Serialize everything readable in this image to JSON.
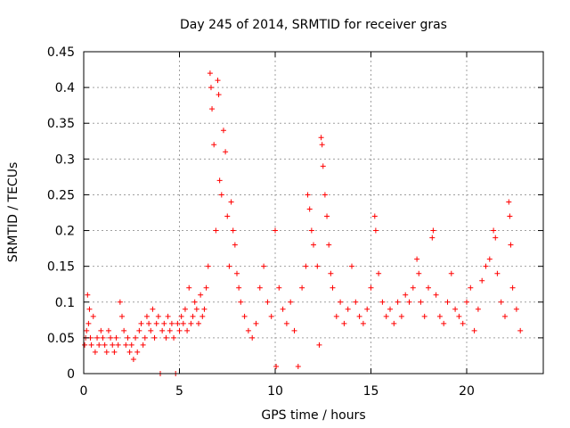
{
  "chart_data": {
    "type": "scatter",
    "title": "Day 245 of 2014, SRMTID for receiver gras",
    "xlabel": "GPS time / hours",
    "ylabel": "SRMTID / TECUs",
    "xlim": [
      0,
      24
    ],
    "ylim": [
      0,
      0.45
    ],
    "grid": true,
    "marker": "+",
    "color": "#ff0000",
    "x_ticks": [
      0,
      5,
      10,
      15,
      20
    ],
    "x_tick_labels": [
      "0",
      "5",
      "10",
      "15",
      "20"
    ],
    "y_ticks": [
      0,
      0.05,
      0.1,
      0.15,
      0.2,
      0.25,
      0.3,
      0.35,
      0.4,
      0.45
    ],
    "y_tick_labels": [
      "0",
      "0.05",
      "0.1",
      "0.15",
      "0.2",
      "0.25",
      "0.3",
      "0.35",
      "0.4",
      "0.45"
    ],
    "series": [
      {
        "name": "SRMTID",
        "points": [
          [
            0.05,
            0.04
          ],
          [
            0.1,
            0.05
          ],
          [
            0.15,
            0.06
          ],
          [
            0.2,
            0.11
          ],
          [
            0.25,
            0.07
          ],
          [
            0.3,
            0.09
          ],
          [
            0.35,
            0.05
          ],
          [
            0.4,
            0.04
          ],
          [
            0.5,
            0.08
          ],
          [
            0.6,
            0.03
          ],
          [
            0.7,
            0.05
          ],
          [
            0.8,
            0.04
          ],
          [
            0.9,
            0.06
          ],
          [
            1.0,
            0.05
          ],
          [
            1.1,
            0.04
          ],
          [
            1.2,
            0.03
          ],
          [
            1.3,
            0.06
          ],
          [
            1.4,
            0.05
          ],
          [
            1.5,
            0.04
          ],
          [
            1.6,
            0.03
          ],
          [
            1.7,
            0.05
          ],
          [
            1.8,
            0.04
          ],
          [
            1.9,
            0.1
          ],
          [
            2.0,
            0.08
          ],
          [
            2.1,
            0.06
          ],
          [
            2.2,
            0.04
          ],
          [
            2.3,
            0.05
          ],
          [
            2.4,
            0.03
          ],
          [
            2.5,
            0.04
          ],
          [
            2.6,
            0.02
          ],
          [
            2.7,
            0.05
          ],
          [
            2.8,
            0.03
          ],
          [
            2.9,
            0.06
          ],
          [
            3.0,
            0.07
          ],
          [
            3.1,
            0.04
          ],
          [
            3.2,
            0.05
          ],
          [
            3.3,
            0.08
          ],
          [
            3.4,
            0.07
          ],
          [
            3.5,
            0.06
          ],
          [
            3.6,
            0.09
          ],
          [
            3.7,
            0.05
          ],
          [
            3.8,
            0.07
          ],
          [
            3.9,
            0.08
          ],
          [
            4.0,
            0.0
          ],
          [
            4.1,
            0.06
          ],
          [
            4.2,
            0.07
          ],
          [
            4.3,
            0.05
          ],
          [
            4.4,
            0.08
          ],
          [
            4.5,
            0.06
          ],
          [
            4.6,
            0.07
          ],
          [
            4.7,
            0.05
          ],
          [
            4.8,
            0.0
          ],
          [
            4.9,
            0.07
          ],
          [
            5.0,
            0.06
          ],
          [
            5.1,
            0.08
          ],
          [
            5.2,
            0.07
          ],
          [
            5.3,
            0.09
          ],
          [
            5.4,
            0.06
          ],
          [
            5.5,
            0.12
          ],
          [
            5.6,
            0.07
          ],
          [
            5.7,
            0.08
          ],
          [
            5.8,
            0.1
          ],
          [
            5.9,
            0.09
          ],
          [
            6.0,
            0.07
          ],
          [
            6.1,
            0.11
          ],
          [
            6.2,
            0.08
          ],
          [
            6.3,
            0.09
          ],
          [
            6.4,
            0.12
          ],
          [
            6.5,
            0.15
          ],
          [
            6.6,
            0.42
          ],
          [
            6.65,
            0.4
          ],
          [
            6.7,
            0.37
          ],
          [
            6.8,
            0.32
          ],
          [
            6.9,
            0.2
          ],
          [
            7.0,
            0.41
          ],
          [
            7.05,
            0.39
          ],
          [
            7.1,
            0.27
          ],
          [
            7.2,
            0.25
          ],
          [
            7.3,
            0.34
          ],
          [
            7.4,
            0.31
          ],
          [
            7.5,
            0.22
          ],
          [
            7.6,
            0.15
          ],
          [
            7.7,
            0.24
          ],
          [
            7.8,
            0.2
          ],
          [
            7.9,
            0.18
          ],
          [
            8.0,
            0.14
          ],
          [
            8.1,
            0.12
          ],
          [
            8.2,
            0.1
          ],
          [
            8.4,
            0.08
          ],
          [
            8.6,
            0.06
          ],
          [
            8.8,
            0.05
          ],
          [
            9.0,
            0.07
          ],
          [
            9.2,
            0.12
          ],
          [
            9.4,
            0.15
          ],
          [
            9.6,
            0.1
          ],
          [
            9.8,
            0.08
          ],
          [
            10.0,
            0.2
          ],
          [
            10.05,
            0.01
          ],
          [
            10.2,
            0.12
          ],
          [
            10.4,
            0.09
          ],
          [
            10.6,
            0.07
          ],
          [
            10.8,
            0.1
          ],
          [
            11.0,
            0.06
          ],
          [
            11.2,
            0.01
          ],
          [
            11.4,
            0.12
          ],
          [
            11.6,
            0.15
          ],
          [
            11.7,
            0.25
          ],
          [
            11.8,
            0.23
          ],
          [
            11.9,
            0.2
          ],
          [
            12.0,
            0.18
          ],
          [
            12.2,
            0.15
          ],
          [
            12.3,
            0.04
          ],
          [
            12.4,
            0.33
          ],
          [
            12.45,
            0.32
          ],
          [
            12.5,
            0.29
          ],
          [
            12.6,
            0.25
          ],
          [
            12.7,
            0.22
          ],
          [
            12.8,
            0.18
          ],
          [
            12.9,
            0.14
          ],
          [
            13.0,
            0.12
          ],
          [
            13.2,
            0.08
          ],
          [
            13.4,
            0.1
          ],
          [
            13.6,
            0.07
          ],
          [
            13.8,
            0.09
          ],
          [
            14.0,
            0.15
          ],
          [
            14.2,
            0.1
          ],
          [
            14.4,
            0.08
          ],
          [
            14.6,
            0.07
          ],
          [
            14.8,
            0.09
          ],
          [
            15.0,
            0.12
          ],
          [
            15.2,
            0.22
          ],
          [
            15.25,
            0.2
          ],
          [
            15.4,
            0.14
          ],
          [
            15.6,
            0.1
          ],
          [
            15.8,
            0.08
          ],
          [
            16.0,
            0.09
          ],
          [
            16.2,
            0.07
          ],
          [
            16.4,
            0.1
          ],
          [
            16.6,
            0.08
          ],
          [
            16.8,
            0.11
          ],
          [
            17.0,
            0.1
          ],
          [
            17.2,
            0.12
          ],
          [
            17.4,
            0.16
          ],
          [
            17.5,
            0.14
          ],
          [
            17.6,
            0.1
          ],
          [
            17.8,
            0.08
          ],
          [
            18.0,
            0.12
          ],
          [
            18.2,
            0.19
          ],
          [
            18.25,
            0.2
          ],
          [
            18.4,
            0.11
          ],
          [
            18.6,
            0.08
          ],
          [
            18.8,
            0.07
          ],
          [
            19.0,
            0.1
          ],
          [
            19.2,
            0.14
          ],
          [
            19.4,
            0.09
          ],
          [
            19.6,
            0.08
          ],
          [
            19.8,
            0.07
          ],
          [
            20.0,
            0.1
          ],
          [
            20.2,
            0.12
          ],
          [
            20.4,
            0.06
          ],
          [
            20.6,
            0.09
          ],
          [
            20.8,
            0.13
          ],
          [
            21.0,
            0.15
          ],
          [
            21.2,
            0.16
          ],
          [
            21.4,
            0.2
          ],
          [
            21.5,
            0.19
          ],
          [
            21.6,
            0.14
          ],
          [
            21.8,
            0.1
          ],
          [
            22.0,
            0.08
          ],
          [
            22.2,
            0.24
          ],
          [
            22.25,
            0.22
          ],
          [
            22.3,
            0.18
          ],
          [
            22.4,
            0.12
          ],
          [
            22.6,
            0.09
          ],
          [
            22.8,
            0.06
          ]
        ]
      }
    ]
  }
}
